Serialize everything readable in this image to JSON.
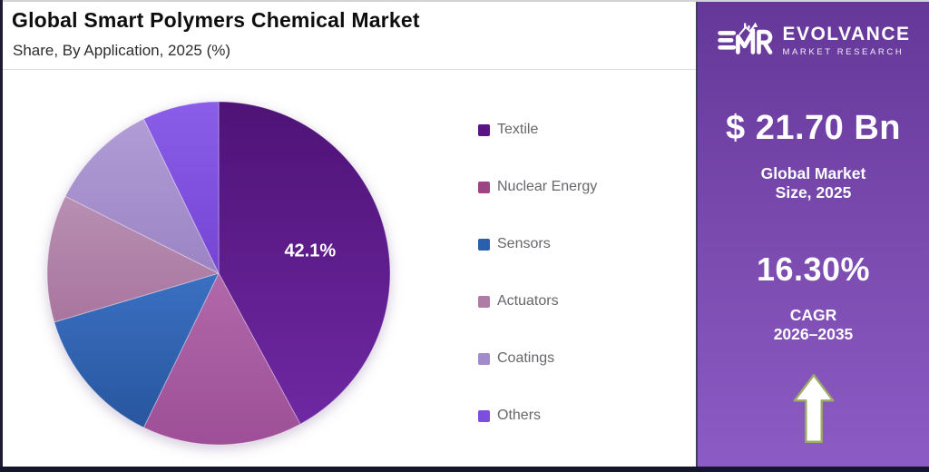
{
  "header": {
    "title": "Global Smart Polymers Chemical Market",
    "subtitle": "Share, By Application, 2025 (%)"
  },
  "chart_data": {
    "type": "pie",
    "title": "Global Smart Polymers Chemical Market",
    "subtitle": "Share, By Application, 2025 (%)",
    "unit": "%",
    "start_angle_deg": 0,
    "direction": "clockwise",
    "legend_position": "right",
    "labeled_value_text": "42.1%",
    "segments": [
      {
        "label": "Textile",
        "value": 42.1,
        "labeled": true,
        "color_top": "#4f1377",
        "color_bottom": "#6e28a2",
        "legend_color": "#5a1486"
      },
      {
        "label": "Nuclear Energy",
        "value": 15.1,
        "labeled": false,
        "color_top": "#b168aa",
        "color_bottom": "#9e4f97",
        "legend_color": "#9d4584"
      },
      {
        "label": "Sensors",
        "value": 13.2,
        "labeled": false,
        "color_top": "#3a70c2",
        "color_bottom": "#28569e",
        "legend_color": "#2a5fae"
      },
      {
        "label": "Actuators",
        "value": 12.0,
        "labeled": false,
        "color_top": "#b88fb3",
        "color_bottom": "#a9759f",
        "legend_color": "#ae7ca6"
      },
      {
        "label": "Coatings",
        "value": 10.4,
        "labeled": false,
        "color_top": "#b19cd6",
        "color_bottom": "#9c84c4",
        "legend_color": "#a28bc9"
      },
      {
        "label": "Others",
        "value": 7.2,
        "labeled": false,
        "color_top": "#8a5ee9",
        "color_bottom": "#7544d3",
        "legend_color": "#7c4edd"
      }
    ]
  },
  "panel": {
    "logo": {
      "monogram": "EMR",
      "brand": "EVOLVANCE",
      "tagline": "MARKET RESEARCH"
    },
    "market_size": {
      "value": "$ 21.70 Bn",
      "label_line1": "Global Market",
      "label_line2": "Size, 2025"
    },
    "cagr": {
      "value": "16.30%",
      "label_line1": "CAGR",
      "label_line2": "2026–2035"
    },
    "arrow_icon": "up-arrow",
    "colors": {
      "panel_gradient_top": "#653799",
      "panel_gradient_bottom": "#8c5bc4",
      "arrow_fill": "#ffffff",
      "arrow_outline": "#9cab67"
    }
  },
  "frame": {
    "bottom_bar_color": "#15152d"
  }
}
